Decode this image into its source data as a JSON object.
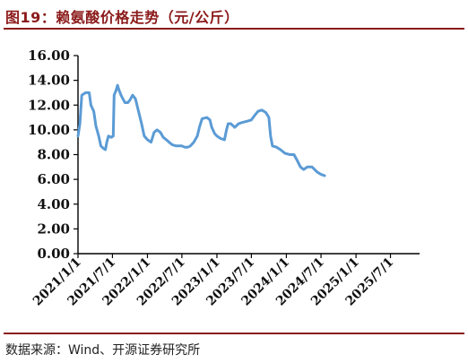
{
  "header": {
    "title": "图19：赖氨酸价格走势（元/公斤）"
  },
  "footer": {
    "source": "数据来源：Wind、开源证券研究所"
  },
  "colors": {
    "line": "#5B9BD5",
    "title": "#8B1A1A",
    "axis": "#000000"
  },
  "chart_data": {
    "type": "line",
    "title": "",
    "xlabel": "",
    "ylabel": "",
    "ylim": [
      0,
      16
    ],
    "grid": false,
    "legend": "none",
    "y_ticks": [
      "0.00",
      "2.00",
      "4.00",
      "6.00",
      "8.00",
      "10.00",
      "12.00",
      "14.00",
      "16.00"
    ],
    "x_ticks": [
      {
        "label": "2021/1/1",
        "x": "2021-01-01"
      },
      {
        "label": "2021/7/1",
        "x": "2021-07-01"
      },
      {
        "label": "2022/1/1",
        "x": "2022-01-01"
      },
      {
        "label": "2022/7/1",
        "x": "2022-07-01"
      },
      {
        "label": "2023/1/1",
        "x": "2023-01-01"
      },
      {
        "label": "2023/7/1",
        "x": "2023-07-01"
      },
      {
        "label": "2024/1/1",
        "x": "2024-01-01"
      },
      {
        "label": "2024/7/1",
        "x": "2024-07-01"
      },
      {
        "label": "2025/1/1",
        "x": "2025-01-01"
      },
      {
        "label": "2025/7/1",
        "x": "2025-07-01"
      }
    ],
    "xlim": [
      "2021-01-01",
      "2025-12-01"
    ],
    "series": [
      {
        "values": [
          [
            "2021-01-01",
            9.5
          ],
          [
            "2021-01-11",
            10.5
          ],
          [
            "2021-01-21",
            12.8
          ],
          [
            "2021-02-10",
            13.0
          ],
          [
            "2021-03-01",
            13.0
          ],
          [
            "2021-03-10",
            12.0
          ],
          [
            "2021-03-25",
            11.5
          ],
          [
            "2021-04-05",
            10.3
          ],
          [
            "2021-04-20",
            9.5
          ],
          [
            "2021-05-01",
            8.7
          ],
          [
            "2021-05-15",
            8.5
          ],
          [
            "2021-05-25",
            8.4
          ],
          [
            "2021-06-01",
            9.0
          ],
          [
            "2021-06-10",
            9.5
          ],
          [
            "2021-06-25",
            9.4
          ],
          [
            "2021-07-05",
            9.5
          ],
          [
            "2021-07-10",
            12.8
          ],
          [
            "2021-07-20",
            13.2
          ],
          [
            "2021-07-28",
            13.6
          ],
          [
            "2021-08-05",
            13.2
          ],
          [
            "2021-08-15",
            12.8
          ],
          [
            "2021-08-25",
            12.5
          ],
          [
            "2021-09-05",
            12.2
          ],
          [
            "2021-09-20",
            12.2
          ],
          [
            "2021-10-01",
            12.4
          ],
          [
            "2021-10-15",
            12.8
          ],
          [
            "2021-10-30",
            12.5
          ],
          [
            "2021-11-15",
            11.5
          ],
          [
            "2021-12-01",
            10.5
          ],
          [
            "2021-12-15",
            9.5
          ],
          [
            "2022-01-01",
            9.2
          ],
          [
            "2022-01-20",
            9.0
          ],
          [
            "2022-02-05",
            9.8
          ],
          [
            "2022-02-20",
            10.0
          ],
          [
            "2022-03-10",
            9.8
          ],
          [
            "2022-03-25",
            9.4
          ],
          [
            "2022-04-10",
            9.2
          ],
          [
            "2022-04-25",
            9.0
          ],
          [
            "2022-05-10",
            8.8
          ],
          [
            "2022-06-01",
            8.7
          ],
          [
            "2022-06-20",
            8.7
          ],
          [
            "2022-07-01",
            8.7
          ],
          [
            "2022-07-15",
            8.6
          ],
          [
            "2022-08-01",
            8.6
          ],
          [
            "2022-08-15",
            8.7
          ],
          [
            "2022-09-01",
            9.0
          ],
          [
            "2022-09-20",
            9.5
          ],
          [
            "2022-10-01",
            10.2
          ],
          [
            "2022-10-15",
            10.9
          ],
          [
            "2022-11-10",
            11.0
          ],
          [
            "2022-11-25",
            10.8
          ],
          [
            "2022-12-05",
            10.2
          ],
          [
            "2022-12-20",
            9.7
          ],
          [
            "2023-01-01",
            9.5
          ],
          [
            "2023-01-20",
            9.3
          ],
          [
            "2023-02-10",
            9.2
          ],
          [
            "2023-02-20",
            10.0
          ],
          [
            "2023-03-01",
            10.5
          ],
          [
            "2023-03-15",
            10.5
          ],
          [
            "2023-04-05",
            10.2
          ],
          [
            "2023-04-25",
            10.5
          ],
          [
            "2023-05-15",
            10.6
          ],
          [
            "2023-06-10",
            10.7
          ],
          [
            "2023-07-01",
            10.8
          ],
          [
            "2023-07-20",
            11.2
          ],
          [
            "2023-08-05",
            11.5
          ],
          [
            "2023-08-25",
            11.6
          ],
          [
            "2023-09-15",
            11.4
          ],
          [
            "2023-10-01",
            11.0
          ],
          [
            "2023-10-10",
            9.5
          ],
          [
            "2023-10-20",
            8.7
          ],
          [
            "2023-11-10",
            8.6
          ],
          [
            "2023-12-01",
            8.4
          ],
          [
            "2023-12-25",
            8.1
          ],
          [
            "2024-01-20",
            8.0
          ],
          [
            "2024-02-10",
            8.0
          ],
          [
            "2024-02-28",
            7.5
          ],
          [
            "2024-03-15",
            7.0
          ],
          [
            "2024-04-01",
            6.8
          ],
          [
            "2024-04-20",
            7.0
          ],
          [
            "2024-05-15",
            7.0
          ],
          [
            "2024-06-10",
            6.6
          ],
          [
            "2024-07-01",
            6.4
          ],
          [
            "2024-07-20",
            6.3
          ]
        ]
      }
    ]
  }
}
